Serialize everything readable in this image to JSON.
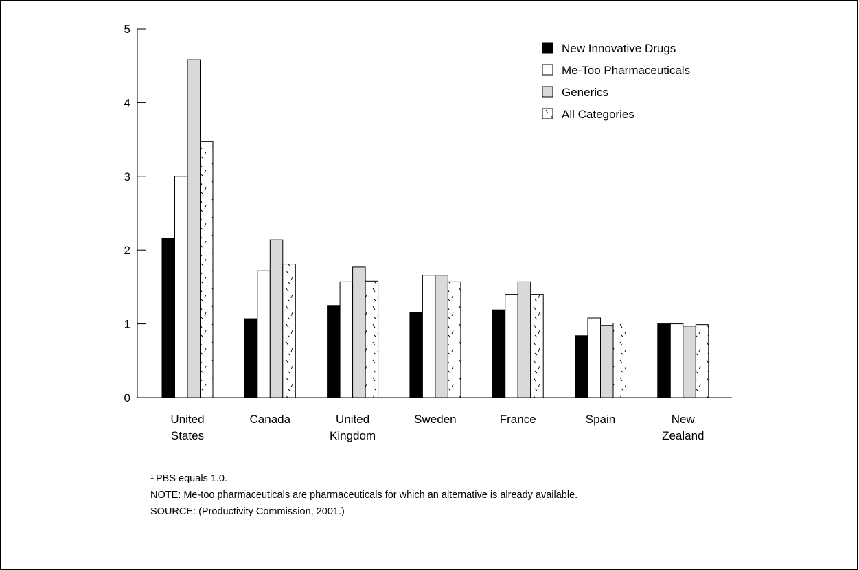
{
  "chart_data": {
    "type": "bar",
    "categories": [
      "United States",
      "Canada",
      "United Kingdom",
      "Sweden",
      "France",
      "Spain",
      "New Zealand"
    ],
    "category_lines": [
      [
        "United",
        "States"
      ],
      [
        "Canada"
      ],
      [
        "United",
        "Kingdom"
      ],
      [
        "Sweden"
      ],
      [
        "France"
      ],
      [
        "Spain"
      ],
      [
        "New",
        "Zealand"
      ]
    ],
    "series": [
      {
        "name": "New Innovative Drugs",
        "fill": "#000000",
        "values": [
          2.16,
          1.07,
          1.25,
          1.15,
          1.19,
          0.84,
          1.0
        ]
      },
      {
        "name": "Me-Too Pharmaceuticals",
        "fill": "#ffffff",
        "values": [
          3.0,
          1.72,
          1.57,
          1.66,
          1.4,
          1.08,
          1.0
        ]
      },
      {
        "name": "Generics",
        "fill": "#d9d9d9",
        "values": [
          4.58,
          2.14,
          1.77,
          1.66,
          1.57,
          0.98,
          0.97
        ]
      },
      {
        "name": "All Categories",
        "fill": "hatch",
        "values": [
          3.47,
          1.81,
          1.58,
          1.57,
          1.4,
          1.01,
          0.99
        ]
      }
    ],
    "yticks": [
      0,
      1,
      2,
      3,
      4,
      5
    ],
    "ylim": [
      0,
      5
    ],
    "title": "",
    "xlabel": "",
    "ylabel": "",
    "grid": false,
    "legend_position": "top-right"
  },
  "notes": {
    "footnote_marker": "1",
    "footnote_text": "PBS equals 1.0.",
    "note": "NOTE: Me-too pharmaceuticals are pharmaceuticals for which an alternative is already available.",
    "source": "SOURCE: (Productivity Commission, 2001.)"
  }
}
